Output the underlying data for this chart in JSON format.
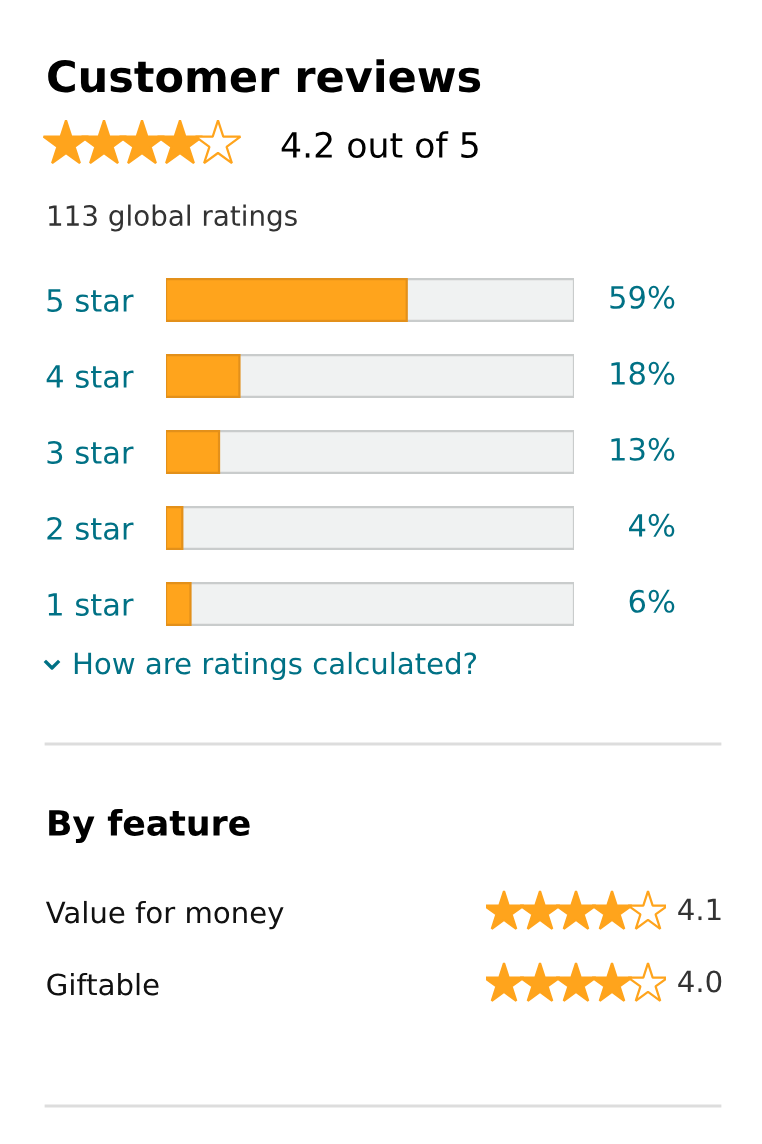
{
  "chart_data": [
    {
      "type": "bar",
      "orientation": "horizontal",
      "title": "Customer reviews",
      "subtitle": "4.2 out of 5",
      "annotations": [
        "113 global ratings",
        "How are ratings calculated?"
      ],
      "categories": [
        "5 star",
        "4 star",
        "3 star",
        "2 star",
        "1 star"
      ],
      "values": [
        59,
        18,
        13,
        4,
        6
      ],
      "color": "#ffa41c",
      "xlim": [
        0,
        100
      ],
      "value_labels": [
        "59%",
        "18%",
        "13%",
        "4%",
        "6%"
      ],
      "tick_labels": "y",
      "grid": false,
      "legend": false
    },
    {
      "type": "other",
      "title": "By feature",
      "categories": [
        "Value for money",
        "Giftable"
      ],
      "values": [
        4.1,
        4.0
      ],
      "color": "#ffa41c",
      "value_labels": [
        "4.1",
        "4.0"
      ]
    }
  ]
}
